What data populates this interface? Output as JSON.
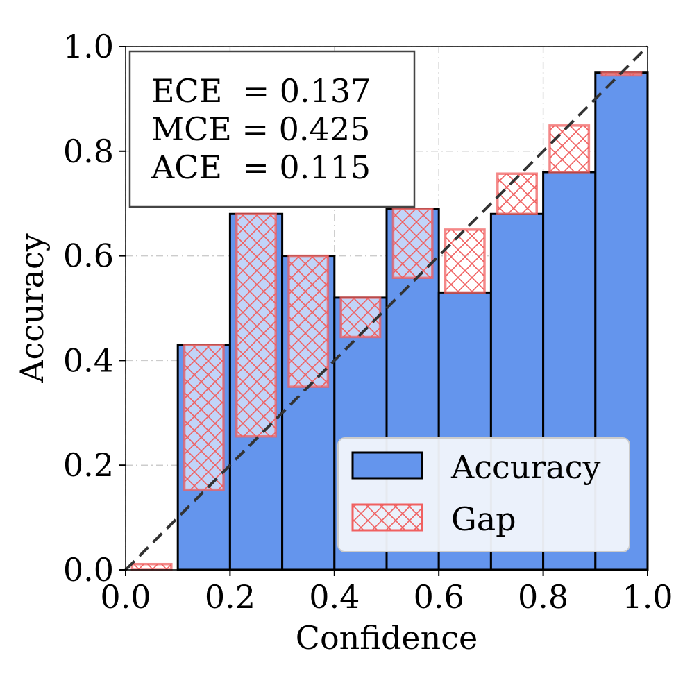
{
  "chart_data": {
    "type": "bar",
    "xlabel": "Confidence",
    "ylabel": "Accuracy",
    "xlim": [
      0.0,
      1.0
    ],
    "ylim": [
      0.0,
      1.0
    ],
    "grid": true,
    "x_ticks": [
      "0.0",
      "0.2",
      "0.4",
      "0.6",
      "0.8",
      "1.0"
    ],
    "y_ticks": [
      "0.0",
      "0.2",
      "0.4",
      "0.6",
      "0.8",
      "1.0"
    ],
    "bin_edges": [
      0.0,
      0.1,
      0.2,
      0.3,
      0.4,
      0.5,
      0.6,
      0.7,
      0.8,
      0.9,
      1.0
    ],
    "series": [
      {
        "name": "Accuracy",
        "color": "#6495ed",
        "values": [
          0.0,
          0.43,
          0.68,
          0.6,
          0.52,
          0.69,
          0.53,
          0.68,
          0.76,
          0.95
        ]
      },
      {
        "name": "Gap",
        "color": "#f06060",
        "lower": [
          0.0,
          0.153,
          0.255,
          0.35,
          0.445,
          0.558,
          0.53,
          0.68,
          0.76,
          0.945
        ],
        "upper": [
          0.011,
          0.43,
          0.68,
          0.6,
          0.52,
          0.69,
          0.65,
          0.757,
          0.849,
          0.95
        ]
      }
    ],
    "diagonal": true,
    "annotations": [
      "ECE  = 0.137",
      "MCE = 0.425",
      "ACE  = 0.115"
    ],
    "legend_position": "lower-right"
  }
}
